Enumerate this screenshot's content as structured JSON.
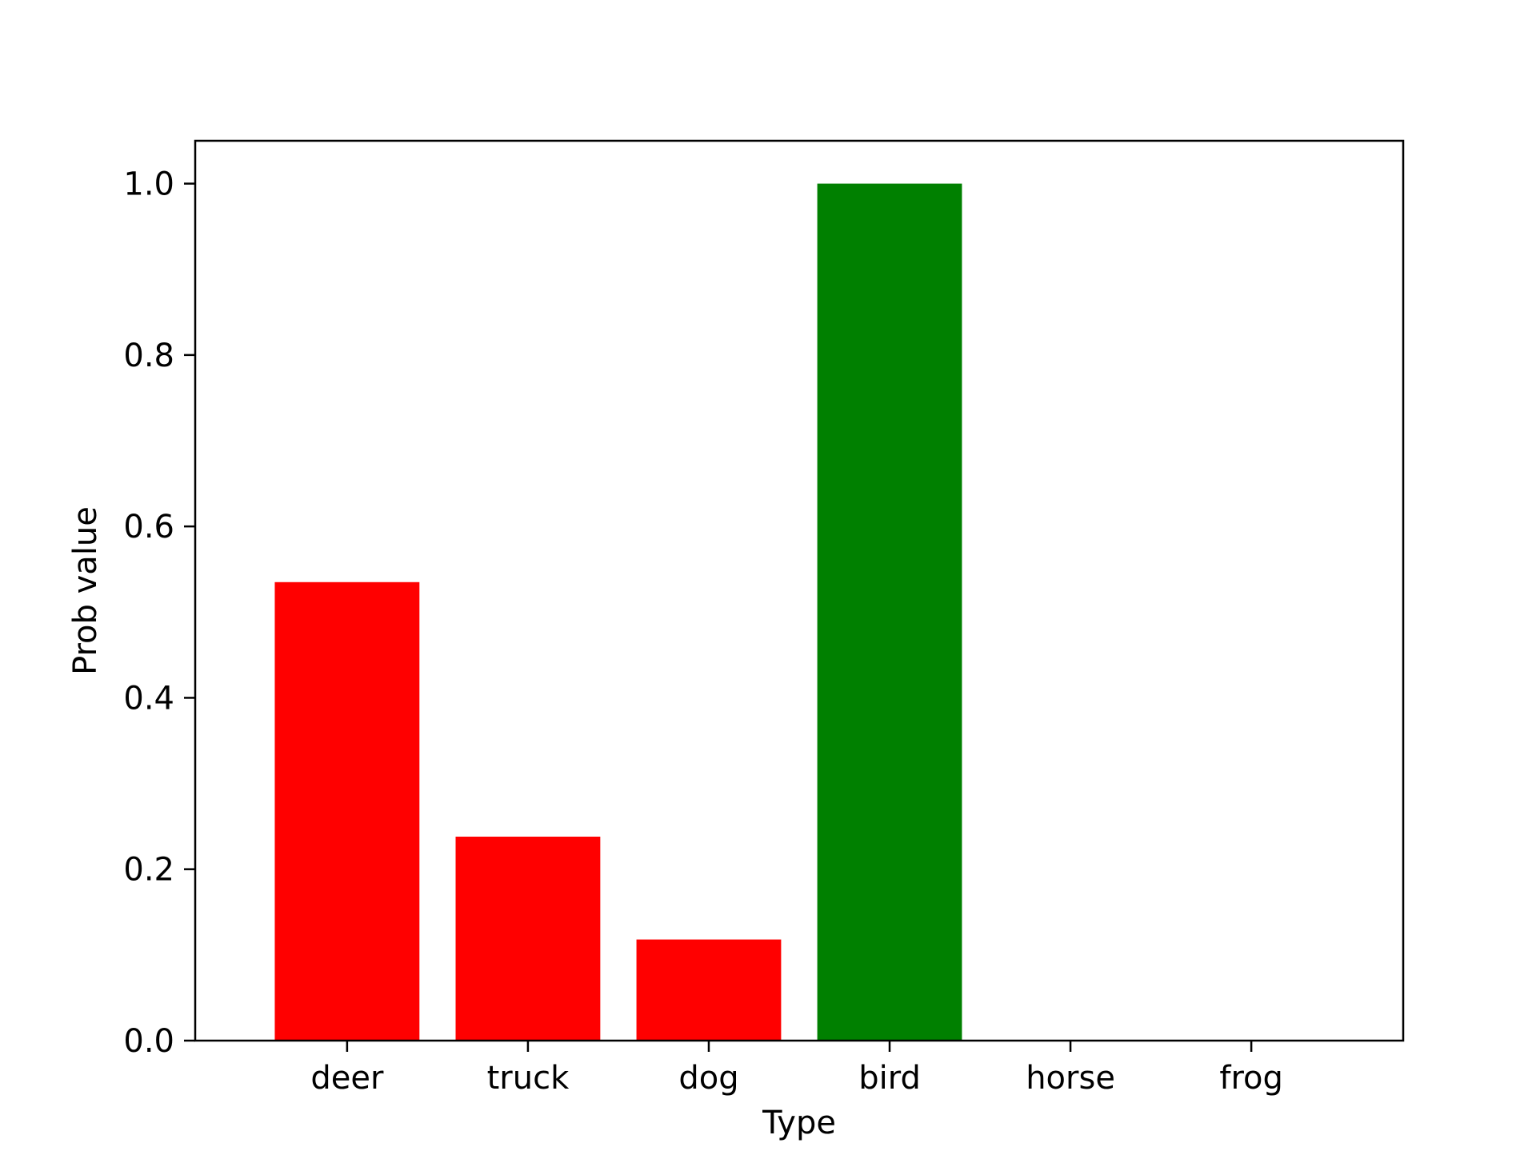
{
  "chart_data": {
    "type": "bar",
    "categories": [
      "deer",
      "truck",
      "dog",
      "bird",
      "horse",
      "frog"
    ],
    "values": [
      0.535,
      0.238,
      0.118,
      1.0,
      0.0,
      0.0
    ],
    "bar_colors": [
      "#ff0000",
      "#ff0000",
      "#ff0000",
      "#008000",
      "#ff0000",
      "#ff0000"
    ],
    "xlabel": "Type",
    "ylabel": "Prob value",
    "ylim": [
      0,
      1.05
    ],
    "yticks": [
      0.0,
      0.2,
      0.4,
      0.6,
      0.8,
      1.0
    ],
    "ytick_labels": [
      "0.0",
      "0.2",
      "0.4",
      "0.6",
      "0.8",
      "1.0"
    ],
    "grid": false,
    "legend": "none"
  }
}
